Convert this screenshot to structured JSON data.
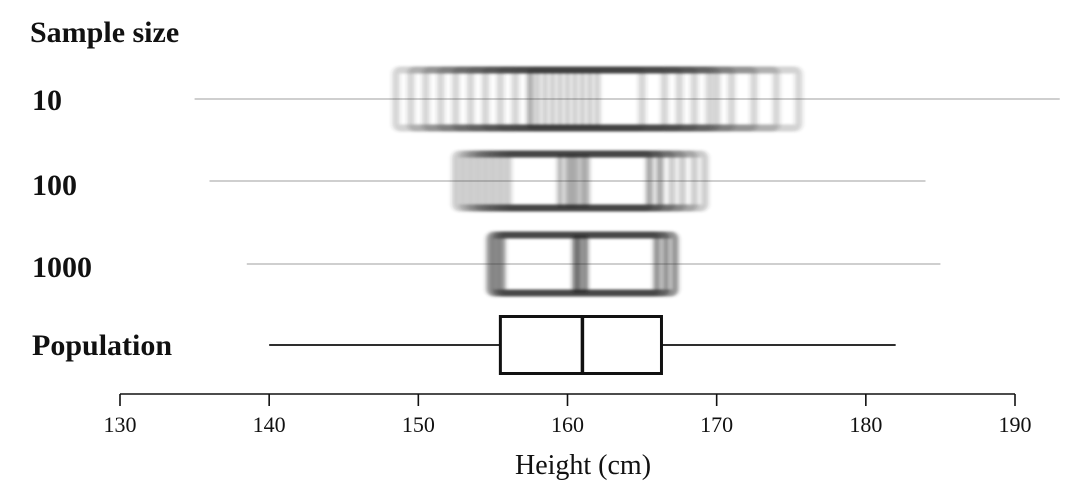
{
  "chart_data": {
    "type": "boxplot",
    "title": "Sample size",
    "xlabel": "Height (cm)",
    "xlim": [
      130,
      190
    ],
    "xticks": [
      "130",
      "140",
      "150",
      "160",
      "170",
      "180",
      "190"
    ],
    "grid": false,
    "rows": [
      {
        "label": "10",
        "style": "blurred",
        "whisker_low": 135,
        "whisker_high": 193,
        "q1": [
          148.5,
          149.5,
          150.5,
          151.5,
          152.5,
          153.5,
          154.5,
          155.5,
          156.5,
          157.5
        ],
        "median": [
          157.5,
          158,
          158.5,
          159,
          159.5,
          160,
          160.5,
          161,
          161.5,
          162
        ],
        "q3": [
          165,
          166.5,
          167.5,
          168.5,
          169.5,
          170,
          171,
          172.5,
          174,
          175.5
        ]
      },
      {
        "label": "100",
        "style": "blurred",
        "whisker_low": 136,
        "whisker_high": 184,
        "q1": [
          152.5,
          153,
          153.5,
          154,
          154.5,
          155,
          155.5,
          156
        ],
        "median": [
          159.5,
          160,
          160.3,
          160.6,
          161,
          161.3
        ],
        "q3": [
          165.5,
          166.2,
          167,
          167.7,
          168.5,
          169.2
        ]
      },
      {
        "label": "1000",
        "style": "blurred",
        "whisker_low": 138.5,
        "whisker_high": 185,
        "q1": [
          154.8,
          155.2,
          155.6
        ],
        "median": [
          160.5,
          160.8,
          161.2
        ],
        "q3": [
          166,
          166.6,
          167.2
        ]
      },
      {
        "label": "Population",
        "style": "solid",
        "whisker_low": 140,
        "whisker_high": 182,
        "q1": [
          155.5
        ],
        "median": [
          161
        ],
        "q3": [
          166.3
        ]
      }
    ]
  }
}
